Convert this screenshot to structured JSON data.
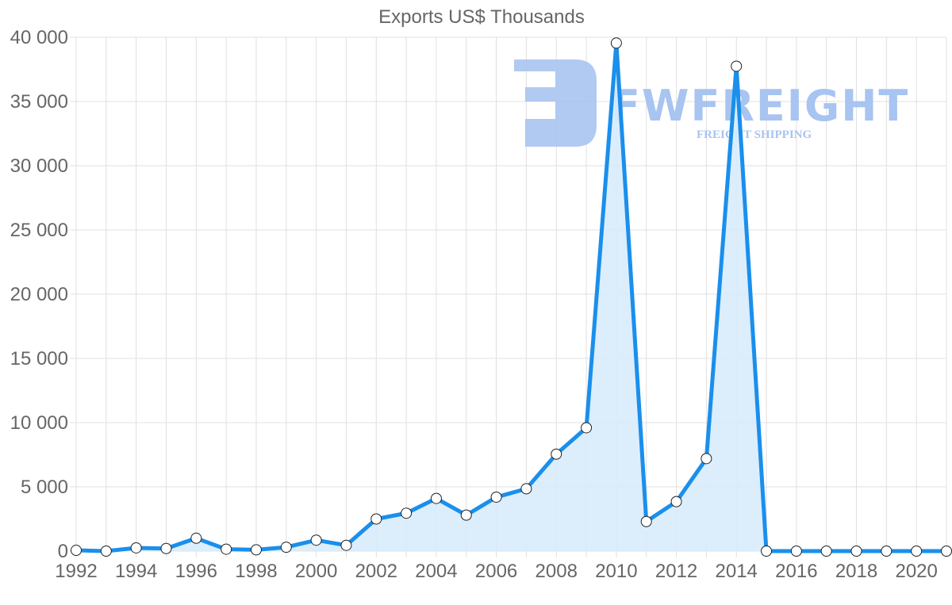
{
  "chart_data": {
    "type": "line",
    "title": "Exports US$ Thousands",
    "xlabel": "",
    "ylabel": "",
    "ylim": [
      0,
      40000
    ],
    "yticks": [
      0,
      5000,
      10000,
      15000,
      20000,
      25000,
      30000,
      35000,
      40000
    ],
    "ytick_labels": [
      "0",
      "5 000",
      "10 000",
      "15 000",
      "20 000",
      "25 000",
      "30 000",
      "35 000",
      "40 000"
    ],
    "xtick_labels": [
      "1992",
      "1994",
      "1996",
      "1998",
      "2000",
      "2002",
      "2004",
      "2006",
      "2008",
      "2010",
      "2012",
      "2014",
      "2016",
      "2018",
      "2020"
    ],
    "grid": true,
    "legend": "none",
    "fill": true,
    "x": [
      1992,
      1993,
      1994,
      1995,
      1996,
      1997,
      1998,
      1999,
      2000,
      2001,
      2002,
      2003,
      2004,
      2005,
      2006,
      2007,
      2008,
      2009,
      2010,
      2011,
      2012,
      2013,
      2014,
      2015,
      2016,
      2017,
      2018,
      2019,
      2020,
      2021
    ],
    "series": [
      {
        "name": "Exports US$ Thousands",
        "values": [
          60,
          0,
          250,
          200,
          1000,
          150,
          100,
          300,
          850,
          450,
          2500,
          2950,
          4100,
          2800,
          4200,
          4850,
          7550,
          9600,
          39550,
          2300,
          3850,
          7200,
          37750,
          0,
          0,
          0,
          0,
          0,
          0,
          0
        ]
      }
    ]
  },
  "colors": {
    "line": "#1a8fec",
    "fill": "#d8ebfc",
    "grid": "#e0e0e0",
    "text": "#666666",
    "watermark": "#a8c4f0"
  },
  "watermark": {
    "brand": "FWFREIGHT",
    "tagline": "FREIGHT SHIPPING"
  }
}
